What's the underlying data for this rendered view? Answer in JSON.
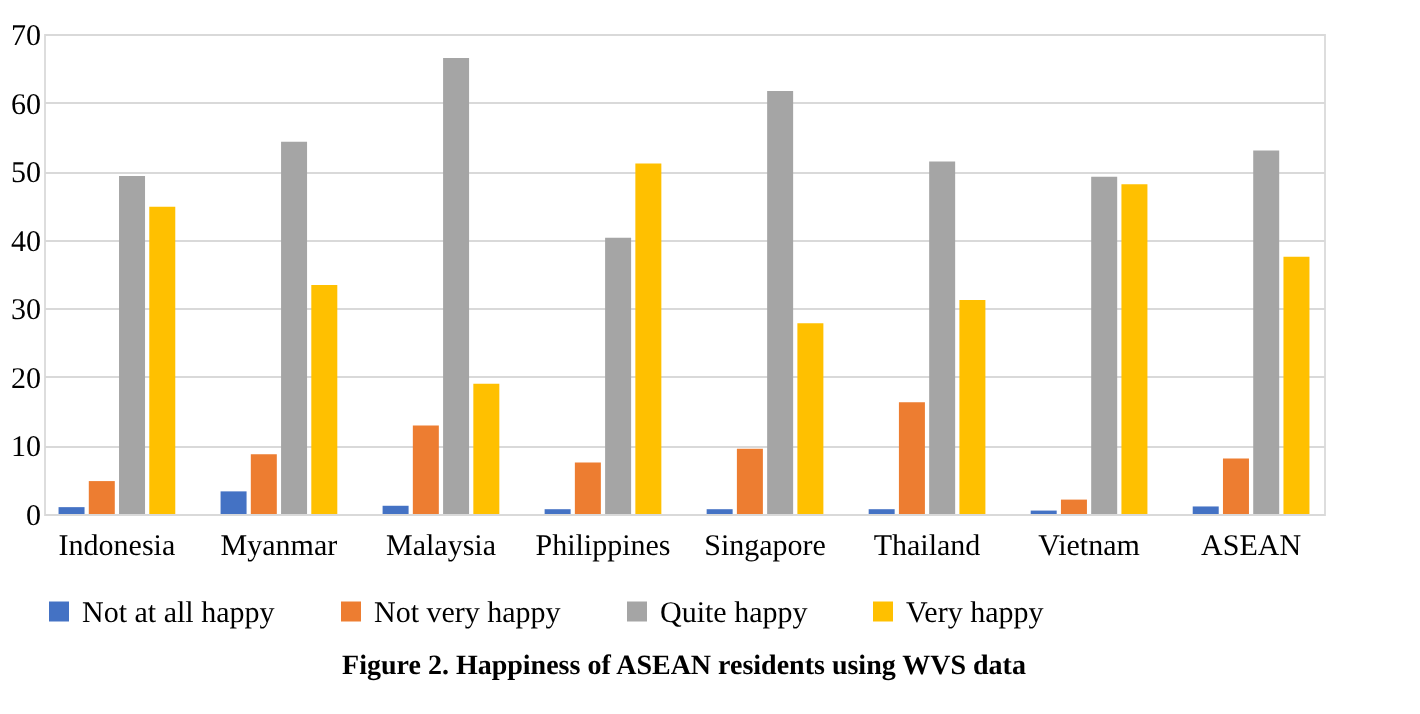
{
  "chart_data": {
    "type": "bar",
    "title": "Figure 2. Happiness of ASEAN residents using WVS data",
    "categories": [
      "Indonesia",
      "Myanmar",
      "Malaysia",
      "Philippines",
      "Singapore",
      "Thailand",
      "Vietnam",
      "ASEAN"
    ],
    "series": [
      {
        "name": "Not at all happy",
        "color": "#4472c4",
        "values": [
          1.0,
          3.3,
          1.2,
          0.7,
          0.7,
          0.7,
          0.5,
          1.1
        ]
      },
      {
        "name": "Not very happy",
        "color": "#ed7d31",
        "values": [
          4.8,
          8.7,
          12.9,
          7.5,
          9.5,
          16.3,
          2.1,
          8.1
        ]
      },
      {
        "name": "Quite happy",
        "color": "#a5a5a5",
        "values": [
          49.3,
          54.3,
          66.5,
          40.3,
          61.7,
          51.4,
          49.2,
          53.0
        ]
      },
      {
        "name": "Very happy",
        "color": "#ffc000",
        "values": [
          44.8,
          33.4,
          19.0,
          51.1,
          27.8,
          31.2,
          48.1,
          37.5
        ]
      }
    ],
    "ylim": [
      0,
      70
    ],
    "yticks": [
      0,
      10,
      20,
      30,
      40,
      50,
      60,
      70
    ],
    "grid": "y",
    "legend": "bottom"
  }
}
